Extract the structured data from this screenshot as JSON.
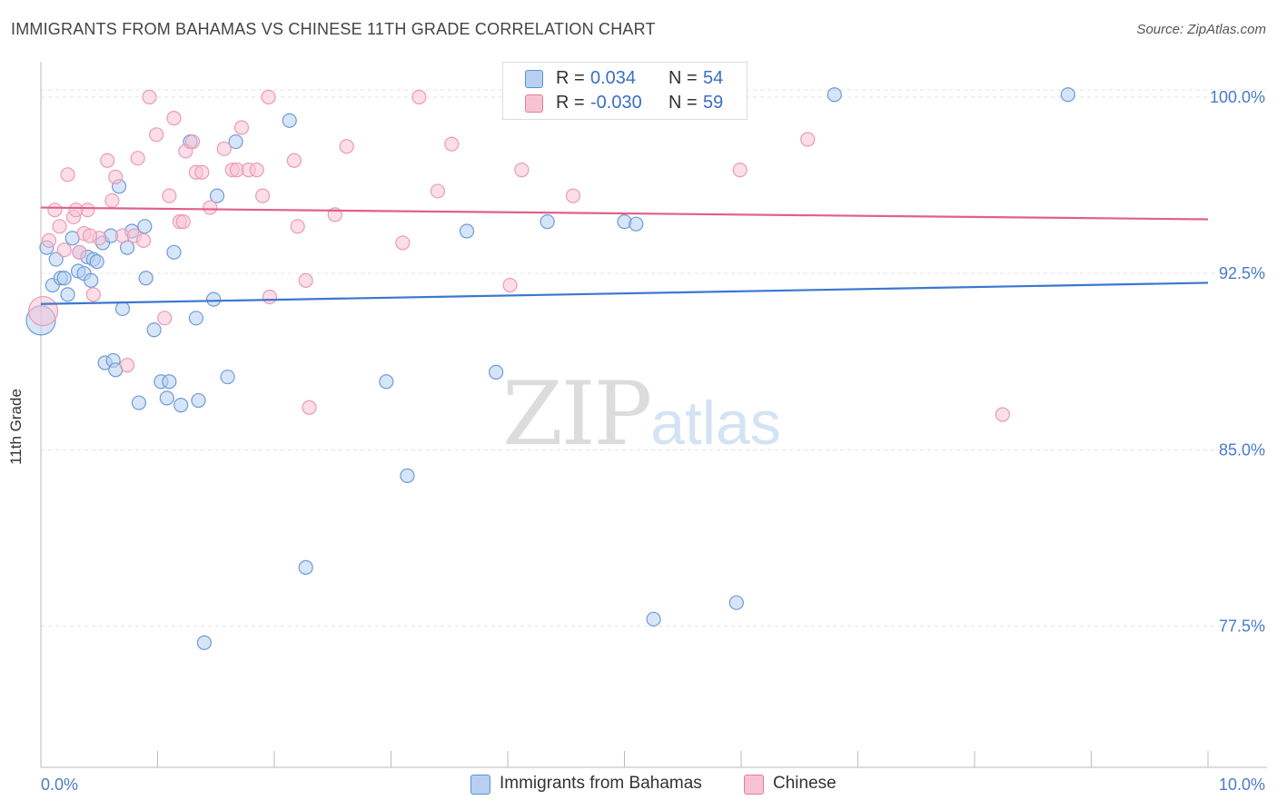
{
  "header": {
    "title": "IMMIGRANTS FROM BAHAMAS VS CHINESE 11TH GRADE CORRELATION CHART",
    "source": "Source: ZipAtlas.com"
  },
  "legend": {
    "series": [
      {
        "r_label": "R =",
        "r_value": "0.034",
        "n_label": "N =",
        "n_value": "54",
        "color": "#5b8fd6",
        "fill": "#b7d0f2"
      },
      {
        "r_label": "R =",
        "r_value": "-0.030",
        "n_label": "N =",
        "n_value": "59",
        "color": "#e8789c",
        "fill": "#f7c3d3"
      }
    ]
  },
  "bottom_legend": [
    {
      "label": "Immigrants from Bahamas",
      "fill": "#b7d0f2",
      "color": "#5b8fd6"
    },
    {
      "label": "Chinese",
      "fill": "#f7c3d3",
      "color": "#e8789c"
    }
  ],
  "watermark": {
    "zip": "ZIP",
    "atlas": "atlas"
  },
  "chart_data": {
    "type": "scatter",
    "title": "IMMIGRANTS FROM BAHAMAS VS CHINESE 11TH GRADE CORRELATION CHART",
    "xlabel": "",
    "ylabel": "11th Grade",
    "xlim": [
      0,
      10
    ],
    "ylim": [
      71.5,
      101.5
    ],
    "x_tick_labels": [
      "0.0%",
      "10.0%"
    ],
    "y_ticks": [
      77.5,
      85.0,
      92.5,
      100.0
    ],
    "y_tick_labels": [
      "77.5%",
      "85.0%",
      "92.5%",
      "100.0%"
    ],
    "grid": true,
    "legend_position": "top-center",
    "series": [
      {
        "name": "Immigrants from Bahamas",
        "color": "#3a78d0",
        "fill": "#b7d0f2",
        "trend": {
          "x": [
            0,
            10
          ],
          "y": [
            91.2,
            92.1
          ]
        },
        "points": [
          {
            "x": 0.0,
            "y": 90.5,
            "big": true
          },
          {
            "x": 0.05,
            "y": 93.6
          },
          {
            "x": 0.1,
            "y": 92.0
          },
          {
            "x": 0.13,
            "y": 93.1
          },
          {
            "x": 0.17,
            "y": 92.3
          },
          {
            "x": 0.2,
            "y": 92.3
          },
          {
            "x": 0.23,
            "y": 91.6
          },
          {
            "x": 0.27,
            "y": 94.0
          },
          {
            "x": 0.32,
            "y": 92.6
          },
          {
            "x": 0.33,
            "y": 93.4
          },
          {
            "x": 0.37,
            "y": 92.5
          },
          {
            "x": 0.4,
            "y": 93.2
          },
          {
            "x": 0.43,
            "y": 92.2
          },
          {
            "x": 0.45,
            "y": 93.1
          },
          {
            "x": 0.48,
            "y": 93.0
          },
          {
            "x": 0.53,
            "y": 93.8
          },
          {
            "x": 0.55,
            "y": 88.7
          },
          {
            "x": 0.62,
            "y": 88.8
          },
          {
            "x": 0.64,
            "y": 88.4
          },
          {
            "x": 0.67,
            "y": 96.2
          },
          {
            "x": 0.7,
            "y": 91.0
          },
          {
            "x": 0.74,
            "y": 93.6
          },
          {
            "x": 0.78,
            "y": 94.3
          },
          {
            "x": 0.84,
            "y": 87.0
          },
          {
            "x": 0.89,
            "y": 94.5
          },
          {
            "x": 0.9,
            "y": 92.3
          },
          {
            "x": 0.97,
            "y": 90.1
          },
          {
            "x": 1.03,
            "y": 87.9
          },
          {
            "x": 1.08,
            "y": 87.2
          },
          {
            "x": 1.1,
            "y": 87.9
          },
          {
            "x": 1.14,
            "y": 93.4
          },
          {
            "x": 1.2,
            "y": 86.9
          },
          {
            "x": 1.28,
            "y": 98.1
          },
          {
            "x": 1.33,
            "y": 90.6
          },
          {
            "x": 1.35,
            "y": 87.1
          },
          {
            "x": 1.4,
            "y": 76.8
          },
          {
            "x": 1.48,
            "y": 91.4
          },
          {
            "x": 1.51,
            "y": 95.8
          },
          {
            "x": 1.6,
            "y": 88.1
          },
          {
            "x": 1.67,
            "y": 98.1
          },
          {
            "x": 2.13,
            "y": 99.0
          },
          {
            "x": 2.27,
            "y": 80.0
          },
          {
            "x": 2.96,
            "y": 87.9
          },
          {
            "x": 3.14,
            "y": 83.9
          },
          {
            "x": 3.65,
            "y": 94.3
          },
          {
            "x": 3.9,
            "y": 88.3
          },
          {
            "x": 4.34,
            "y": 94.7
          },
          {
            "x": 5.0,
            "y": 94.7
          },
          {
            "x": 5.1,
            "y": 94.6
          },
          {
            "x": 5.25,
            "y": 77.8
          },
          {
            "x": 5.96,
            "y": 78.5
          },
          {
            "x": 6.8,
            "y": 100.1
          },
          {
            "x": 8.8,
            "y": 100.1
          },
          {
            "x": 0.6,
            "y": 94.1
          }
        ]
      },
      {
        "name": "Chinese",
        "color": "#e0608a",
        "fill": "#f7c3d3",
        "trend": {
          "x": [
            0,
            10
          ],
          "y": [
            95.3,
            94.8
          ]
        },
        "points": [
          {
            "x": 0.02,
            "y": 90.9,
            "big": true
          },
          {
            "x": 0.07,
            "y": 93.9
          },
          {
            "x": 0.12,
            "y": 95.2
          },
          {
            "x": 0.16,
            "y": 94.5
          },
          {
            "x": 0.2,
            "y": 93.5
          },
          {
            "x": 0.23,
            "y": 96.7
          },
          {
            "x": 0.28,
            "y": 94.9
          },
          {
            "x": 0.33,
            "y": 93.4
          },
          {
            "x": 0.37,
            "y": 94.2
          },
          {
            "x": 0.4,
            "y": 95.2
          },
          {
            "x": 0.45,
            "y": 91.6
          },
          {
            "x": 0.5,
            "y": 94.0
          },
          {
            "x": 0.57,
            "y": 97.3
          },
          {
            "x": 0.61,
            "y": 95.6
          },
          {
            "x": 0.64,
            "y": 96.6
          },
          {
            "x": 0.7,
            "y": 94.1
          },
          {
            "x": 0.74,
            "y": 88.6
          },
          {
            "x": 0.8,
            "y": 94.1
          },
          {
            "x": 0.83,
            "y": 97.4
          },
          {
            "x": 0.88,
            "y": 93.9
          },
          {
            "x": 0.93,
            "y": 100.0
          },
          {
            "x": 0.99,
            "y": 98.4
          },
          {
            "x": 1.06,
            "y": 90.6
          },
          {
            "x": 1.1,
            "y": 95.8
          },
          {
            "x": 1.14,
            "y": 99.1
          },
          {
            "x": 1.19,
            "y": 94.7
          },
          {
            "x": 1.24,
            "y": 97.7
          },
          {
            "x": 1.3,
            "y": 98.1
          },
          {
            "x": 1.33,
            "y": 96.8
          },
          {
            "x": 1.38,
            "y": 96.8
          },
          {
            "x": 1.45,
            "y": 95.3
          },
          {
            "x": 1.57,
            "y": 97.8
          },
          {
            "x": 1.64,
            "y": 96.9
          },
          {
            "x": 1.68,
            "y": 96.9
          },
          {
            "x": 1.72,
            "y": 98.7
          },
          {
            "x": 1.78,
            "y": 96.9
          },
          {
            "x": 1.85,
            "y": 96.9
          },
          {
            "x": 1.9,
            "y": 95.8
          },
          {
            "x": 1.96,
            "y": 91.5
          },
          {
            "x": 1.95,
            "y": 100.0
          },
          {
            "x": 2.17,
            "y": 97.3
          },
          {
            "x": 2.2,
            "y": 94.5
          },
          {
            "x": 2.27,
            "y": 92.2
          },
          {
            "x": 2.3,
            "y": 86.8
          },
          {
            "x": 2.52,
            "y": 95.0
          },
          {
            "x": 2.62,
            "y": 97.9
          },
          {
            "x": 3.1,
            "y": 93.8
          },
          {
            "x": 3.24,
            "y": 100.0
          },
          {
            "x": 3.4,
            "y": 96.0
          },
          {
            "x": 3.52,
            "y": 98.0
          },
          {
            "x": 4.02,
            "y": 92.0
          },
          {
            "x": 4.12,
            "y": 96.9
          },
          {
            "x": 4.56,
            "y": 95.8
          },
          {
            "x": 5.99,
            "y": 96.9
          },
          {
            "x": 6.57,
            "y": 98.2
          },
          {
            "x": 8.24,
            "y": 86.5
          },
          {
            "x": 0.3,
            "y": 95.2
          },
          {
            "x": 1.22,
            "y": 94.7
          },
          {
            "x": 0.42,
            "y": 94.1
          }
        ]
      }
    ]
  }
}
